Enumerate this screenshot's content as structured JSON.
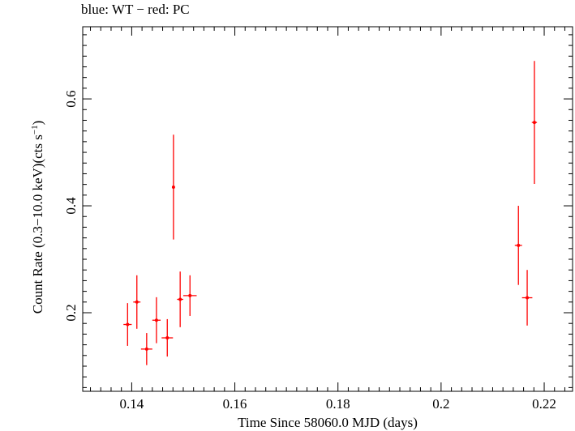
{
  "chart_data": {
    "type": "scatter",
    "title": "blue: WT − red: PC",
    "xlabel": "Time Since 58060.0 MJD (days)",
    "ylabel_main": "Count Rate (0.3−10.0 keV)(cts s",
    "ylabel_sup": "−1",
    "ylabel_end": ")",
    "xlim": [
      0.1305,
      0.2255
    ],
    "ylim": [
      0.053,
      0.735
    ],
    "xticks": [
      0.14,
      0.16,
      0.18,
      0.2,
      0.22
    ],
    "xtick_labels": [
      "0.14",
      "0.16",
      "0.18",
      "0.2",
      "0.22"
    ],
    "yticks": [
      0.2,
      0.4,
      0.6
    ],
    "ytick_labels": [
      "0.2",
      "0.4",
      "0.6"
    ],
    "grid": false,
    "series": [
      {
        "name": "PC",
        "color": "#ff0000",
        "points": [
          {
            "x": 0.1392,
            "y": 0.178,
            "xerr": 0.0008,
            "yerr_lo": 0.04,
            "yerr_hi": 0.04
          },
          {
            "x": 0.141,
            "y": 0.22,
            "xerr": 0.0007,
            "yerr_lo": 0.05,
            "yerr_hi": 0.05
          },
          {
            "x": 0.1429,
            "y": 0.132,
            "xerr": 0.0011,
            "yerr_lo": 0.03,
            "yerr_hi": 0.03
          },
          {
            "x": 0.1448,
            "y": 0.186,
            "xerr": 0.0008,
            "yerr_lo": 0.043,
            "yerr_hi": 0.043
          },
          {
            "x": 0.1469,
            "y": 0.153,
            "xerr": 0.0011,
            "yerr_lo": 0.035,
            "yerr_hi": 0.035
          },
          {
            "x": 0.1481,
            "y": 0.435,
            "xerr": 0.0002,
            "yerr_lo": 0.098,
            "yerr_hi": 0.098
          },
          {
            "x": 0.1494,
            "y": 0.225,
            "xerr": 0.0006,
            "yerr_lo": 0.052,
            "yerr_hi": 0.052
          },
          {
            "x": 0.1513,
            "y": 0.232,
            "xerr": 0.0013,
            "yerr_lo": 0.038,
            "yerr_hi": 0.038
          },
          {
            "x": 0.215,
            "y": 0.326,
            "xerr": 0.0007,
            "yerr_lo": 0.074,
            "yerr_hi": 0.074
          },
          {
            "x": 0.2167,
            "y": 0.228,
            "xerr": 0.001,
            "yerr_lo": 0.052,
            "yerr_hi": 0.052
          },
          {
            "x": 0.2181,
            "y": 0.556,
            "xerr": 0.0005,
            "yerr_lo": 0.115,
            "yerr_hi": 0.115
          }
        ]
      }
    ]
  }
}
